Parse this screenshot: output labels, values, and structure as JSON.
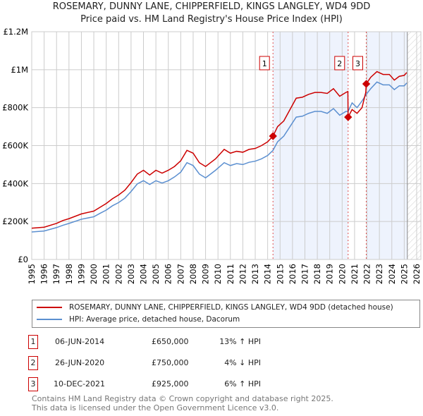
{
  "chart_data": {
    "type": "line",
    "title": "ROSEMARY, DUNNY LANE, CHIPPERFIELD, KINGS LANGLEY, WD4 9DD",
    "subtitle": "Price paid vs. HM Land Registry's House Price Index (HPI)",
    "xlim": [
      1995,
      2026
    ],
    "ylim": [
      0,
      1200000
    ],
    "x_ticks": [
      1995,
      1996,
      1997,
      1998,
      1999,
      2000,
      2001,
      2002,
      2003,
      2004,
      2005,
      2006,
      2007,
      2008,
      2009,
      2010,
      2011,
      2012,
      2013,
      2014,
      2015,
      2016,
      2017,
      2018,
      2019,
      2020,
      2021,
      2022,
      2023,
      2024,
      2025,
      2026
    ],
    "y_ticks": [
      {
        "v": 0,
        "label": "£0"
      },
      {
        "v": 200000,
        "label": "£200K"
      },
      {
        "v": 400000,
        "label": "£400K"
      },
      {
        "v": 600000,
        "label": "£600K"
      },
      {
        "v": 800000,
        "label": "£800K"
      },
      {
        "v": 1000000,
        "label": "£1M"
      },
      {
        "v": 1200000,
        "label": "£1.2M"
      }
    ],
    "grid": true,
    "shaded_ranges": [
      [
        2014.43,
        2020.48
      ],
      [
        2021.94,
        2025.25
      ]
    ],
    "hatched_from": 2025.25,
    "series": [
      {
        "name": "ROSEMARY, DUNNY LANE, CHIPPERFIELD, KINGS LANGLEY, WD4 9DD (detached house)",
        "color": "#cc0000",
        "x": [
          1995,
          1996,
          1997,
          1997.5,
          1998,
          1999,
          2000,
          2000.5,
          2001,
          2001.5,
          2002,
          2002.5,
          2003,
          2003.5,
          2004,
          2004.5,
          2005,
          2005.5,
          2006,
          2006.5,
          2007,
          2007.5,
          2008,
          2008.5,
          2009,
          2009.3,
          2009.8,
          2010.5,
          2011,
          2011.5,
          2012,
          2012.5,
          2013,
          2013.5,
          2014,
          2014.43,
          2014.8,
          2015.3,
          2015.8,
          2016.3,
          2016.8,
          2017.3,
          2017.8,
          2018.3,
          2018.8,
          2019.3,
          2019.8,
          2020.3,
          2020.46,
          2020.48,
          2020.8,
          2021.2,
          2021.6,
          2021.9,
          2021.94,
          2022.3,
          2022.8,
          2023.3,
          2023.8,
          2024.2,
          2024.6,
          2025,
          2025.2
        ],
        "y": [
          165000,
          170000,
          190000,
          205000,
          215000,
          240000,
          255000,
          275000,
          295000,
          320000,
          340000,
          365000,
          405000,
          450000,
          470000,
          445000,
          470000,
          455000,
          470000,
          490000,
          520000,
          575000,
          560000,
          510000,
          490000,
          505000,
          530000,
          580000,
          560000,
          570000,
          565000,
          580000,
          585000,
          600000,
          620000,
          650000,
          700000,
          730000,
          790000,
          850000,
          855000,
          870000,
          880000,
          880000,
          875000,
          900000,
          860000,
          880000,
          885000,
          750000,
          790000,
          770000,
          800000,
          880000,
          925000,
          960000,
          990000,
          975000,
          975000,
          945000,
          965000,
          970000,
          985000
        ]
      },
      {
        "name": "HPI: Average price, detached house, Dacorum",
        "color": "#5b8fd0",
        "x": [
          1995,
          1996,
          1997,
          1997.5,
          1998,
          1999,
          2000,
          2000.5,
          2001,
          2001.5,
          2002,
          2002.5,
          2003,
          2003.5,
          2004,
          2004.5,
          2005,
          2005.5,
          2006,
          2006.5,
          2007,
          2007.5,
          2008,
          2008.5,
          2009,
          2009.3,
          2009.8,
          2010.5,
          2011,
          2011.5,
          2012,
          2012.5,
          2013,
          2013.5,
          2014,
          2014.43,
          2014.8,
          2015.3,
          2015.8,
          2016.3,
          2016.8,
          2017.3,
          2017.8,
          2018.3,
          2018.8,
          2019.3,
          2019.8,
          2020.3,
          2020.48,
          2020.8,
          2021.2,
          2021.6,
          2021.94,
          2022.3,
          2022.8,
          2023.3,
          2023.8,
          2024.2,
          2024.6,
          2025,
          2025.2
        ],
        "y": [
          145000,
          150000,
          168000,
          180000,
          190000,
          212000,
          225000,
          243000,
          260000,
          283000,
          300000,
          323000,
          358000,
          398000,
          415000,
          395000,
          415000,
          403000,
          415000,
          435000,
          460000,
          510000,
          495000,
          450000,
          430000,
          445000,
          470000,
          510000,
          495000,
          505000,
          500000,
          512000,
          518000,
          530000,
          548000,
          575000,
          620000,
          650000,
          700000,
          750000,
          755000,
          770000,
          780000,
          780000,
          770000,
          795000,
          760000,
          780000,
          780000,
          825000,
          800000,
          835000,
          870000,
          900000,
          935000,
          920000,
          920000,
          895000,
          915000,
          915000,
          930000
        ]
      }
    ],
    "sales": [
      {
        "num": "1",
        "x": 2014.43,
        "price": 650000,
        "date": "06-JUN-2014",
        "price_label": "£650,000",
        "hpi": "13% ↑ HPI"
      },
      {
        "num": "2",
        "x": 2020.48,
        "price": 750000,
        "date": "26-JUN-2020",
        "price_label": "£750,000",
        "hpi": "4% ↓ HPI"
      },
      {
        "num": "3",
        "x": 2021.94,
        "price": 925000,
        "date": "10-DEC-2021",
        "price_label": "£925,000",
        "hpi": "6% ↑ HPI"
      }
    ]
  },
  "legend": {
    "red": "ROSEMARY, DUNNY LANE, CHIPPERFIELD, KINGS LANGLEY, WD4 9DD (detached house)",
    "blue": "HPI: Average price, detached house, Dacorum"
  },
  "footer": {
    "line1": "Contains HM Land Registry data © Crown copyright and database right 2025.",
    "line2": "This data is licensed under the Open Government Licence v3.0."
  }
}
